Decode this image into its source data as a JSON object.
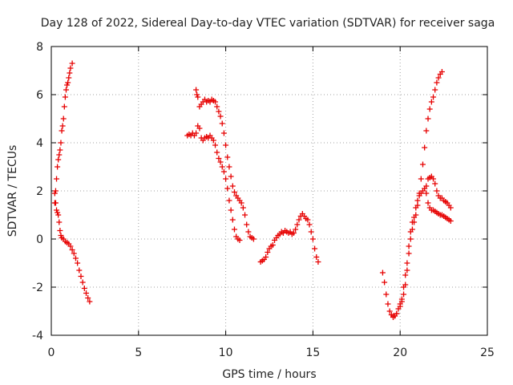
{
  "chart_data": {
    "type": "scatter",
    "title": "Day 128 of 2022, Sidereal Day-to-day VTEC variation (SDTVAR) for receiver saga",
    "xlabel": "GPS time / hours",
    "ylabel": "SDTVAR / TECUs",
    "xlim": [
      0,
      25
    ],
    "ylim": [
      -4,
      8
    ],
    "xticks": [
      0,
      5,
      10,
      15,
      20,
      25
    ],
    "yticks": [
      -4,
      -2,
      0,
      2,
      4,
      6,
      8
    ],
    "xtick_labels": [
      "0",
      "5",
      "10",
      "15",
      "20",
      "25"
    ],
    "ytick_labels": [
      "-4",
      "-2",
      "0",
      "2",
      "4",
      "6",
      "8"
    ],
    "grid": true,
    "legend": "none",
    "marker": "+",
    "color": "#e60000",
    "series": [
      {
        "points": [
          [
            0.2,
            1.9
          ],
          [
            0.25,
            1.5
          ],
          [
            0.3,
            1.2
          ],
          [
            0.35,
            1.1
          ],
          [
            0.4,
            1.0
          ],
          [
            0.45,
            0.7
          ],
          [
            0.5,
            0.35
          ],
          [
            0.55,
            0.15
          ],
          [
            0.6,
            0.05
          ],
          [
            0.7,
            0.0
          ],
          [
            0.8,
            -0.1
          ],
          [
            0.9,
            -0.15
          ],
          [
            1.0,
            -0.2
          ],
          [
            1.1,
            -0.3
          ],
          [
            1.2,
            -0.45
          ],
          [
            1.3,
            -0.6
          ],
          [
            1.4,
            -0.8
          ],
          [
            1.5,
            -1.0
          ],
          [
            1.6,
            -1.3
          ],
          [
            1.7,
            -1.55
          ],
          [
            1.8,
            -1.8
          ],
          [
            1.9,
            -2.05
          ],
          [
            2.0,
            -2.25
          ],
          [
            2.1,
            -2.45
          ],
          [
            2.2,
            -2.6
          ]
        ]
      },
      {
        "points": [
          [
            0.2,
            1.5
          ],
          [
            0.25,
            2.0
          ],
          [
            0.3,
            2.5
          ],
          [
            0.35,
            3.0
          ],
          [
            0.4,
            3.3
          ],
          [
            0.45,
            3.5
          ],
          [
            0.5,
            3.7
          ],
          [
            0.55,
            4.0
          ],
          [
            0.6,
            4.5
          ],
          [
            0.65,
            4.7
          ],
          [
            0.7,
            5.0
          ],
          [
            0.75,
            5.5
          ],
          [
            0.8,
            5.9
          ],
          [
            0.85,
            6.2
          ],
          [
            0.9,
            6.4
          ],
          [
            0.95,
            6.5
          ],
          [
            1.0,
            6.7
          ],
          [
            1.05,
            6.9
          ],
          [
            1.1,
            7.1
          ],
          [
            1.2,
            7.3
          ]
        ]
      },
      {
        "points": [
          [
            7.8,
            4.3
          ],
          [
            7.9,
            4.35
          ],
          [
            8.0,
            4.3
          ],
          [
            8.1,
            4.4
          ],
          [
            8.2,
            4.3
          ],
          [
            8.3,
            4.4
          ],
          [
            8.4,
            4.7
          ],
          [
            8.5,
            4.6
          ],
          [
            8.6,
            4.2
          ],
          [
            8.7,
            4.1
          ],
          [
            8.8,
            4.2
          ],
          [
            8.9,
            4.25
          ],
          [
            9.0,
            4.2
          ],
          [
            9.1,
            4.3
          ],
          [
            9.2,
            4.2
          ],
          [
            9.3,
            4.1
          ],
          [
            9.4,
            3.9
          ],
          [
            9.5,
            3.6
          ],
          [
            9.6,
            3.35
          ],
          [
            9.7,
            3.2
          ],
          [
            9.8,
            3.0
          ],
          [
            9.9,
            2.8
          ],
          [
            10.0,
            2.5
          ],
          [
            10.1,
            2.1
          ],
          [
            10.2,
            1.6
          ],
          [
            10.3,
            1.2
          ],
          [
            10.4,
            0.8
          ],
          [
            10.5,
            0.4
          ],
          [
            10.6,
            0.1
          ],
          [
            10.7,
            0.0
          ],
          [
            10.8,
            -0.05
          ]
        ]
      },
      {
        "points": [
          [
            8.3,
            6.2
          ],
          [
            8.35,
            6.0
          ],
          [
            8.4,
            5.9
          ],
          [
            8.5,
            5.5
          ],
          [
            8.6,
            5.6
          ],
          [
            8.7,
            5.7
          ],
          [
            8.8,
            5.8
          ],
          [
            8.9,
            5.7
          ],
          [
            9.0,
            5.75
          ],
          [
            9.1,
            5.7
          ],
          [
            9.2,
            5.8
          ],
          [
            9.3,
            5.75
          ],
          [
            9.4,
            5.7
          ],
          [
            9.5,
            5.5
          ],
          [
            9.6,
            5.3
          ],
          [
            9.7,
            5.1
          ],
          [
            9.8,
            4.8
          ],
          [
            9.9,
            4.4
          ],
          [
            10.0,
            3.9
          ],
          [
            10.1,
            3.4
          ],
          [
            10.2,
            3.0
          ],
          [
            10.3,
            2.6
          ],
          [
            10.4,
            2.2
          ],
          [
            10.5,
            1.95
          ],
          [
            10.6,
            1.8
          ],
          [
            10.7,
            1.7
          ],
          [
            10.8,
            1.6
          ],
          [
            10.9,
            1.5
          ],
          [
            11.0,
            1.3
          ],
          [
            11.1,
            1.0
          ],
          [
            11.2,
            0.6
          ],
          [
            11.3,
            0.3
          ],
          [
            11.4,
            0.1
          ],
          [
            11.5,
            0.05
          ],
          [
            11.6,
            0.0
          ]
        ]
      },
      {
        "points": [
          [
            12.0,
            -0.95
          ],
          [
            12.1,
            -0.9
          ],
          [
            12.2,
            -0.85
          ],
          [
            12.3,
            -0.75
          ],
          [
            12.4,
            -0.55
          ],
          [
            12.5,
            -0.4
          ],
          [
            12.6,
            -0.3
          ],
          [
            12.7,
            -0.25
          ],
          [
            12.8,
            -0.05
          ],
          [
            12.9,
            0.05
          ],
          [
            13.0,
            0.15
          ],
          [
            13.1,
            0.2
          ],
          [
            13.2,
            0.3
          ],
          [
            13.3,
            0.25
          ],
          [
            13.4,
            0.35
          ],
          [
            13.5,
            0.3
          ],
          [
            13.6,
            0.25
          ],
          [
            13.7,
            0.3
          ],
          [
            13.8,
            0.2
          ],
          [
            13.9,
            0.25
          ],
          [
            14.0,
            0.4
          ],
          [
            14.1,
            0.6
          ],
          [
            14.2,
            0.8
          ],
          [
            14.3,
            0.95
          ],
          [
            14.4,
            1.05
          ],
          [
            14.5,
            0.95
          ],
          [
            14.6,
            0.85
          ],
          [
            14.7,
            0.8
          ],
          [
            14.8,
            0.6
          ],
          [
            14.9,
            0.3
          ],
          [
            15.0,
            0.0
          ],
          [
            15.1,
            -0.4
          ],
          [
            15.2,
            -0.75
          ],
          [
            15.3,
            -0.95
          ]
        ]
      },
      {
        "points": [
          [
            19.0,
            -1.4
          ],
          [
            19.1,
            -1.8
          ],
          [
            19.2,
            -2.3
          ],
          [
            19.3,
            -2.7
          ],
          [
            19.4,
            -3.0
          ],
          [
            19.5,
            -3.15
          ],
          [
            19.6,
            -3.2
          ],
          [
            19.7,
            -3.2
          ],
          [
            19.8,
            -3.1
          ],
          [
            19.9,
            -2.9
          ],
          [
            20.0,
            -2.7
          ],
          [
            20.1,
            -2.6
          ],
          [
            20.2,
            -2.3
          ],
          [
            20.3,
            -1.9
          ],
          [
            20.4,
            -1.3
          ],
          [
            20.5,
            -0.6
          ],
          [
            20.6,
            0.0
          ],
          [
            20.7,
            0.4
          ],
          [
            20.8,
            0.7
          ],
          [
            20.9,
            1.0
          ],
          [
            21.0,
            1.4
          ],
          [
            21.1,
            1.9
          ],
          [
            21.2,
            2.5
          ],
          [
            21.3,
            3.1
          ],
          [
            21.4,
            3.8
          ],
          [
            21.5,
            4.5
          ],
          [
            21.6,
            5.0
          ],
          [
            21.7,
            5.4
          ],
          [
            21.8,
            5.7
          ],
          [
            21.9,
            5.9
          ],
          [
            22.0,
            6.2
          ],
          [
            22.1,
            6.5
          ],
          [
            22.2,
            6.7
          ],
          [
            22.3,
            6.85
          ],
          [
            22.4,
            6.95
          ]
        ]
      },
      {
        "points": [
          [
            19.6,
            -3.25
          ],
          [
            19.8,
            -3.1
          ],
          [
            20.0,
            -2.8
          ],
          [
            20.1,
            -2.5
          ],
          [
            20.2,
            -2.0
          ],
          [
            20.3,
            -1.5
          ],
          [
            20.4,
            -1.0
          ],
          [
            20.5,
            -0.3
          ],
          [
            20.6,
            0.3
          ],
          [
            20.7,
            0.7
          ],
          [
            20.8,
            0.9
          ],
          [
            20.9,
            1.3
          ],
          [
            21.0,
            1.6
          ],
          [
            21.1,
            1.8
          ],
          [
            21.2,
            1.9
          ],
          [
            21.3,
            2.0
          ],
          [
            21.4,
            2.1
          ],
          [
            21.5,
            2.2
          ],
          [
            21.6,
            2.5
          ],
          [
            21.7,
            2.55
          ],
          [
            21.8,
            2.6
          ],
          [
            21.9,
            2.5
          ],
          [
            22.0,
            2.3
          ],
          [
            22.1,
            2.0
          ],
          [
            22.2,
            1.8
          ],
          [
            22.3,
            1.7
          ],
          [
            22.4,
            1.7
          ],
          [
            22.5,
            1.6
          ],
          [
            22.6,
            1.55
          ],
          [
            22.7,
            1.5
          ],
          [
            22.8,
            1.4
          ],
          [
            22.9,
            1.3
          ]
        ]
      },
      {
        "points": [
          [
            21.5,
            1.9
          ],
          [
            21.6,
            1.5
          ],
          [
            21.7,
            1.3
          ],
          [
            21.8,
            1.2
          ],
          [
            21.9,
            1.2
          ],
          [
            22.0,
            1.15
          ],
          [
            22.1,
            1.1
          ],
          [
            22.2,
            1.05
          ],
          [
            22.3,
            1.0
          ],
          [
            22.4,
            1.0
          ],
          [
            22.5,
            0.95
          ],
          [
            22.6,
            0.9
          ],
          [
            22.7,
            0.85
          ],
          [
            22.8,
            0.8
          ],
          [
            22.9,
            0.75
          ]
        ]
      }
    ]
  }
}
